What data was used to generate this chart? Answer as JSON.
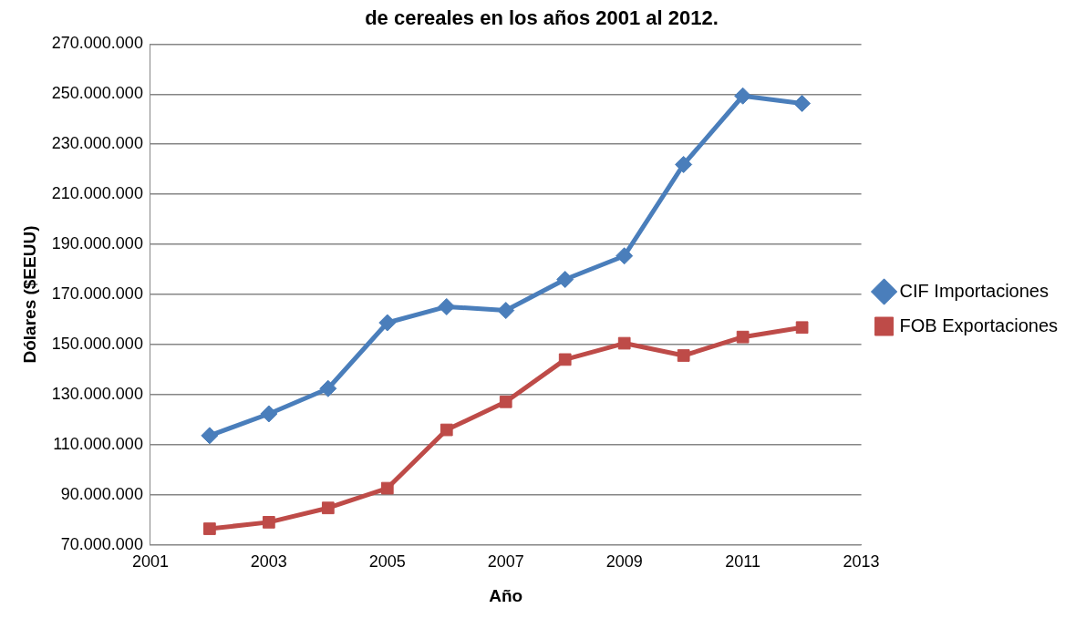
{
  "chart_data": {
    "type": "line",
    "title": "de cereales en los años 2001 al 2012.",
    "xlabel": "Año",
    "ylabel": "Dólares ($EEUU)",
    "x": [
      2002,
      2003,
      2004,
      2005,
      2006,
      2007,
      2008,
      2009,
      2010,
      2011,
      2012
    ],
    "series": [
      {
        "name": "CIF Importaciones",
        "color": "#4a7ebb",
        "marker": "diamond",
        "values": [
          113600000,
          122300000,
          132400000,
          158700000,
          165100000,
          163600000,
          176000000,
          185400000,
          221900000,
          249300000,
          246300000
        ]
      },
      {
        "name": "FOB Exportaciones",
        "color": "#be4b48",
        "marker": "square",
        "values": [
          76400000,
          79000000,
          84700000,
          92600000,
          115900000,
          127100000,
          144000000,
          150500000,
          145600000,
          153000000,
          156800000
        ]
      }
    ],
    "xlim": [
      2001,
      2013
    ],
    "xticks": [
      2001,
      2003,
      2005,
      2007,
      2009,
      2011,
      2013
    ],
    "ylim": [
      70000000,
      270000000
    ],
    "yticks": [
      {
        "value": 70000000,
        "label": "70.000.000"
      },
      {
        "value": 90000000,
        "label": "90.000.000"
      },
      {
        "value": 110000000,
        "label": "110.000.000"
      },
      {
        "value": 130000000,
        "label": "130.000.000"
      },
      {
        "value": 150000000,
        "label": "150.000.000"
      },
      {
        "value": 170000000,
        "label": "170.000.000"
      },
      {
        "value": 190000000,
        "label": "190.000.000"
      },
      {
        "value": 210000000,
        "label": "210.000.000"
      },
      {
        "value": 230000000,
        "label": "230.000.000"
      },
      {
        "value": 250000000,
        "label": "250.000.000"
      },
      {
        "value": 270000000,
        "label": "270.000.000"
      }
    ],
    "grid": "y",
    "legend": "right",
    "line_style": "solid"
  }
}
